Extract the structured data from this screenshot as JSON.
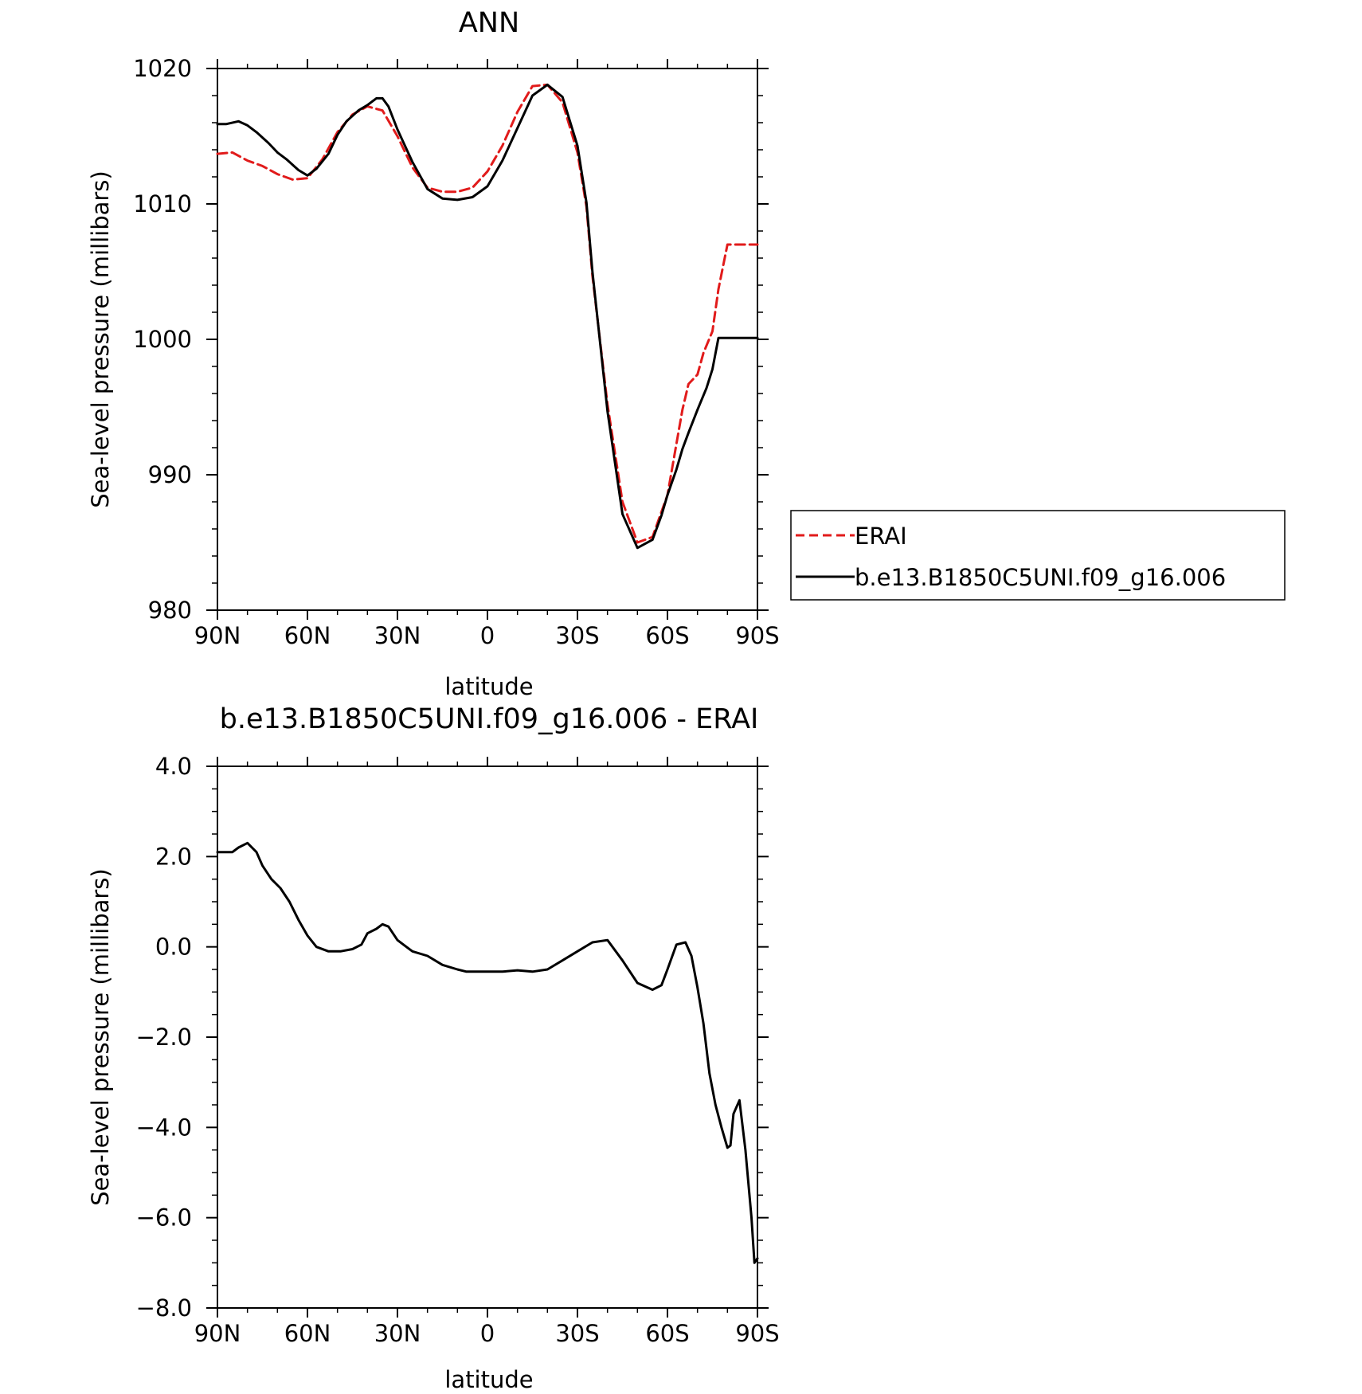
{
  "chart_data": [
    {
      "type": "line",
      "title": "ANN",
      "xlabel": "latitude",
      "ylabel": "Sea-level pressure (millibars)",
      "xlim": [
        90,
        -90
      ],
      "ylim": [
        980,
        1020
      ],
      "x_ticks": [
        90,
        60,
        30,
        0,
        -30,
        -60,
        -90
      ],
      "x_tick_labels": [
        "90N",
        "60N",
        "30N",
        "0",
        "30S",
        "60S",
        "90S"
      ],
      "y_ticks": [
        980,
        990,
        1000,
        1010,
        1020
      ],
      "y_tick_labels": [
        "980",
        "990",
        "1000",
        "1010",
        "1020"
      ],
      "grid": false,
      "legend_position": "right-outside",
      "series": [
        {
          "name": "ERAI",
          "color": "#e11b1b",
          "dash": "dashed",
          "x": [
            90,
            85,
            80,
            75,
            70,
            65,
            60,
            55,
            50,
            45,
            40,
            35,
            30,
            25,
            20,
            15,
            10,
            5,
            0,
            -5,
            -10,
            -15,
            -20,
            -25,
            -30,
            -33,
            -35,
            -40,
            -45,
            -50,
            -55,
            -60,
            -63,
            -65,
            -67,
            -70,
            -72,
            -75,
            -77,
            -80,
            -83,
            -85,
            -87,
            -90
          ],
          "y": [
            1013.7,
            1013.8,
            1013.2,
            1012.8,
            1012.2,
            1011.8,
            1011.9,
            1013.3,
            1015.3,
            1016.6,
            1017.2,
            1016.9,
            1015.0,
            1012.7,
            1011.2,
            1010.9,
            1010.9,
            1011.2,
            1012.4,
            1014.3,
            1016.8,
            1018.7,
            1018.8,
            1017.5,
            1013.8,
            1009.8,
            1004.7,
            995.2,
            988.0,
            985.0,
            985.4,
            988.5,
            992.3,
            994.8,
            996.7,
            997.4,
            999.0,
            1000.6,
            1003.7,
            1007.0,
            1007.0,
            1007.0,
            1007.0,
            1007.0
          ]
        },
        {
          "name": "b.e13.B1850C5UNI.f09_g16.006",
          "color": "#000000",
          "dash": "solid",
          "x": [
            90,
            87,
            83,
            80,
            77,
            73,
            70,
            67,
            63,
            60,
            57,
            53,
            50,
            47,
            43,
            40,
            37,
            35,
            33,
            30,
            25,
            20,
            15,
            10,
            5,
            0,
            -5,
            -10,
            -15,
            -20,
            -25,
            -30,
            -33,
            -35,
            -40,
            -45,
            -50,
            -55,
            -58,
            -60,
            -63,
            -65,
            -67,
            -70,
            -73,
            -75,
            -77,
            -80,
            -83,
            -85,
            -87,
            -90
          ],
          "y": [
            1015.9,
            1015.9,
            1016.1,
            1015.8,
            1015.3,
            1014.5,
            1013.8,
            1013.3,
            1012.5,
            1012.1,
            1012.6,
            1013.7,
            1015.1,
            1016.1,
            1016.9,
            1017.3,
            1017.8,
            1017.8,
            1017.2,
            1015.5,
            1013.1,
            1011.1,
            1010.4,
            1010.3,
            1010.5,
            1011.3,
            1013.2,
            1015.6,
            1018.0,
            1018.8,
            1017.9,
            1014.3,
            1010.1,
            1005.0,
            994.7,
            987.1,
            984.6,
            985.2,
            987.0,
            988.5,
            990.4,
            991.9,
            993.1,
            994.8,
            996.4,
            997.8,
            1000.1,
            1000.1,
            1000.1,
            1000.1,
            1000.1,
            1000.1
          ]
        }
      ]
    },
    {
      "type": "line",
      "title": "b.e13.B1850C5UNI.f09_g16.006 - ERAI",
      "xlabel": "latitude",
      "ylabel": "Sea-level pressure (millibars)",
      "xlim": [
        90,
        -90
      ],
      "ylim": [
        -8,
        4
      ],
      "x_ticks": [
        90,
        60,
        30,
        0,
        -30,
        -60,
        -90
      ],
      "x_tick_labels": [
        "90N",
        "60N",
        "30N",
        "0",
        "30S",
        "60S",
        "90S"
      ],
      "y_ticks": [
        -8,
        -6,
        -4,
        -2,
        0,
        2,
        4
      ],
      "y_tick_labels": [
        "−8.0",
        "−6.0",
        "−4.0",
        "−2.0",
        "0.0",
        "2.0",
        "4.0"
      ],
      "grid": false,
      "series": [
        {
          "color": "#000000",
          "dash": "solid",
          "x": [
            90,
            85,
            83,
            80,
            77,
            75,
            72,
            69,
            66,
            63,
            60,
            57,
            53,
            49,
            45,
            42,
            40,
            37,
            35,
            33,
            30,
            25,
            20,
            15,
            10,
            7,
            5,
            0,
            -5,
            -10,
            -15,
            -20,
            -25,
            -30,
            -35,
            -40,
            -45,
            -50,
            -55,
            -58,
            -60,
            -63,
            -66,
            -68,
            -70,
            -72,
            -74,
            -76,
            -78,
            -80,
            -81,
            -82,
            -84,
            -86,
            -88,
            -89,
            -90
          ],
          "y": [
            2.1,
            2.1,
            2.2,
            2.3,
            2.1,
            1.8,
            1.5,
            1.3,
            1.0,
            0.6,
            0.25,
            0.0,
            -0.1,
            -0.1,
            -0.05,
            0.05,
            0.3,
            0.4,
            0.5,
            0.45,
            0.15,
            -0.1,
            -0.2,
            -0.4,
            -0.5,
            -0.55,
            -0.55,
            -0.55,
            -0.55,
            -0.52,
            -0.55,
            -0.5,
            -0.3,
            -0.1,
            0.1,
            0.15,
            -0.3,
            -0.8,
            -0.95,
            -0.85,
            -0.5,
            0.05,
            0.1,
            -0.2,
            -0.9,
            -1.7,
            -2.8,
            -3.5,
            -4.0,
            -4.45,
            -4.4,
            -3.7,
            -3.4,
            -4.5,
            -6.0,
            -7.0,
            -6.9
          ]
        }
      ]
    }
  ],
  "legend": {
    "entries": [
      {
        "label": "ERAI",
        "color": "#e11b1b",
        "dash": "dashed"
      },
      {
        "label": "b.e13.B1850C5UNI.f09_g16.006",
        "color": "#000000",
        "dash": "solid"
      }
    ]
  }
}
